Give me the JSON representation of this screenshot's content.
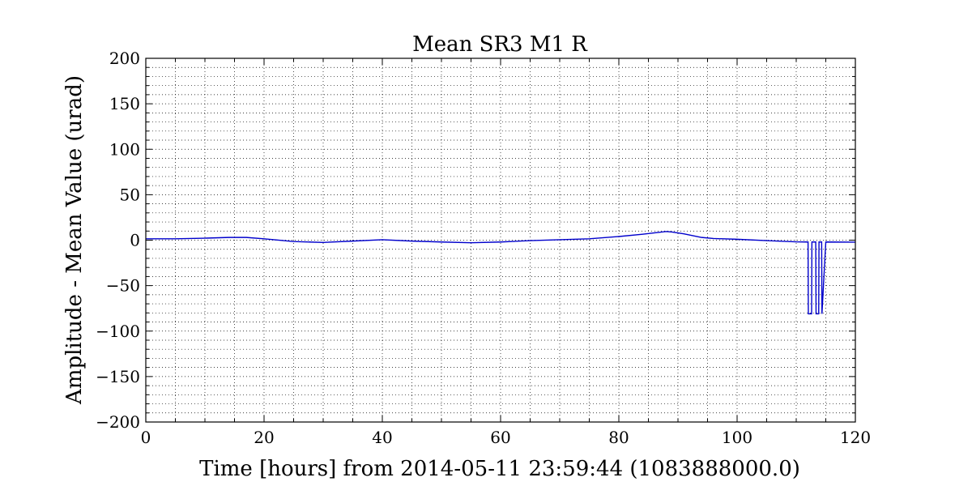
{
  "chart_data": {
    "type": "line",
    "title": "Mean SR3 M1 R",
    "xlabel": "Time [hours] from 2014-05-11 23:59:44 (1083888000.0)",
    "ylabel": "Amplitude - Mean Value (urad)",
    "xlim": [
      0,
      120
    ],
    "ylim": [
      -200,
      200
    ],
    "x_ticks": [
      0,
      20,
      40,
      60,
      80,
      100,
      120
    ],
    "y_ticks": [
      -200,
      -150,
      -100,
      -50,
      0,
      50,
      100,
      150,
      200
    ],
    "grid": true,
    "grid_style": "dotted, major and minor",
    "line_color": "#0000cc",
    "series": [
      {
        "x": [
          0,
          5,
          10,
          14,
          17,
          20,
          25,
          30,
          35,
          40,
          45,
          50,
          55,
          60,
          65,
          70,
          75,
          80,
          84,
          88,
          89,
          91,
          94,
          96,
          100,
          105,
          110,
          111.8,
          112,
          112.05,
          112.6,
          112.65,
          113.3,
          113.35,
          113.8,
          113.85,
          114.3,
          114.35,
          115,
          120
        ],
        "y": [
          1.5,
          1.5,
          2.2,
          3.0,
          3.0,
          1.5,
          -1.5,
          -2.5,
          -1.0,
          0.5,
          -1.0,
          -2.0,
          -2.8,
          -2.0,
          -0.5,
          0.5,
          1.5,
          4.0,
          6.5,
          9.5,
          9.0,
          7.0,
          3.0,
          1.8,
          1.0,
          -0.5,
          -1.8,
          -2.0,
          -2.0,
          -81,
          -81,
          -2.0,
          -2.0,
          -81,
          -81,
          -2.0,
          -2.0,
          -81,
          -2.0,
          -2.2
        ]
      }
    ]
  }
}
